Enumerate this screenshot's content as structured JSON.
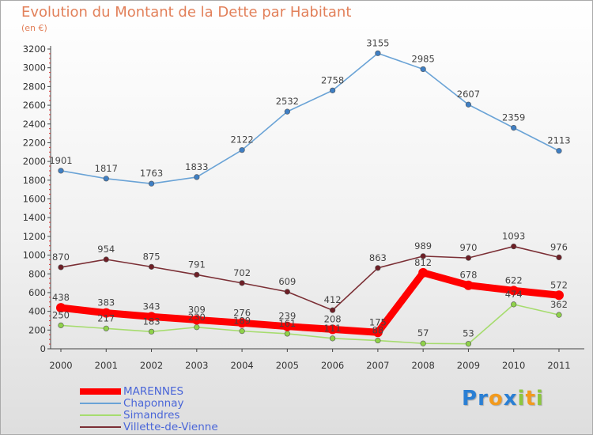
{
  "title": "Evolution du Montant de la Dette par Habitant",
  "subtitle": "(en €)",
  "logo": {
    "text": "Proxiti",
    "letters": [
      {
        "ch": "P",
        "color": "#2a7fd4"
      },
      {
        "ch": "r",
        "color": "#2a7fd4"
      },
      {
        "ch": "o",
        "color": "#f29a1d"
      },
      {
        "ch": "x",
        "color": "#2a7fd4"
      },
      {
        "ch": "i",
        "color": "#8cc63f"
      },
      {
        "ch": "t",
        "color": "#f29a1d"
      },
      {
        "ch": "i",
        "color": "#8cc63f"
      }
    ]
  },
  "chart_data": {
    "type": "line",
    "title": "Evolution du Montant de la Dette par Habitant",
    "subtitle": "(en €)",
    "x": [
      "2000",
      "2001",
      "2002",
      "2003",
      "2004",
      "2005",
      "2006",
      "2007",
      "2008",
      "2009",
      "2010",
      "2011"
    ],
    "ylim": [
      0,
      3200
    ],
    "yticks": [
      0,
      200,
      400,
      600,
      800,
      1000,
      1200,
      1400,
      1600,
      1800,
      2000,
      2200,
      2400,
      2600,
      2800,
      3000,
      3200
    ],
    "grid": false,
    "legend_position": "bottom-left",
    "series": [
      {
        "name": "MARENNES",
        "color": "#ff0000",
        "marker": "#ff0000",
        "emphasis": true,
        "values": [
          438,
          383,
          343,
          309,
          276,
          239,
          208,
          175,
          812,
          678,
          622,
          572
        ]
      },
      {
        "name": "Chaponnay",
        "color": "#6aa3d6",
        "marker": "#3f7fc4",
        "emphasis": false,
        "values": [
          1901,
          1817,
          1763,
          1833,
          2122,
          2532,
          2758,
          3155,
          2985,
          2607,
          2359,
          2113
        ]
      },
      {
        "name": "Simandres",
        "color": "#a6dc6e",
        "marker": "#8fd24a",
        "emphasis": false,
        "values": [
          250,
          217,
          183,
          230,
          189,
          161,
          111,
          88,
          57,
          53,
          474,
          362
        ]
      },
      {
        "name": "Villette-de-Vienne",
        "color": "#7b2f35",
        "marker": "#6e1f26",
        "emphasis": false,
        "values": [
          870,
          954,
          875,
          791,
          702,
          609,
          412,
          863,
          989,
          970,
          1093,
          976
        ]
      }
    ]
  }
}
